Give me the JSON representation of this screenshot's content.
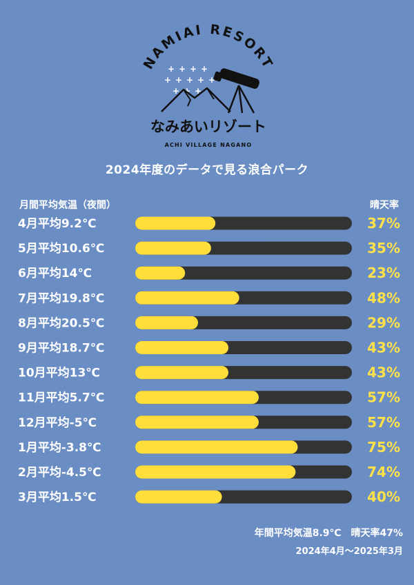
{
  "logo": {
    "brand": "NAMIAI RESORT",
    "name_jp": "なみあいリゾート",
    "sub": "ACHI VILLAGE NAGANO"
  },
  "headline": "2024年度のデータで見る浪合パーク",
  "columns": {
    "left": "月間平均気温（夜間）",
    "right": "晴天率"
  },
  "colors": {
    "background": "#6a8dc3",
    "bar_track": "#333333",
    "bar_fill": "#ffde3b",
    "value_text": "#ffe14a"
  },
  "chart_data": {
    "type": "bar",
    "orientation": "horizontal",
    "value_unit": "%",
    "xlim": [
      0,
      100
    ],
    "categories": [
      "4月平均9.2℃",
      "5月平均10.6℃",
      "6月平均14℃",
      "7月平均19.8℃",
      "8月平均20.5℃",
      "9月平均18.7℃",
      "10月平均13℃",
      "11月平均5.7℃",
      "12月平均-5℃",
      "1月平均-3.8℃",
      "2月平均-4.5℃",
      "3月平均1.5℃"
    ],
    "values": [
      37,
      35,
      23,
      48,
      29,
      43,
      43,
      57,
      57,
      75,
      74,
      40
    ],
    "value_labels": [
      "37%",
      "35%",
      "23%",
      "48%",
      "29%",
      "43%",
      "43%",
      "57%",
      "57%",
      "75%",
      "74%",
      "40%"
    ]
  },
  "footer": {
    "summary": "年間平均気温8.9℃　晴天率47%",
    "period": "2024年4月〜2025年3月"
  }
}
